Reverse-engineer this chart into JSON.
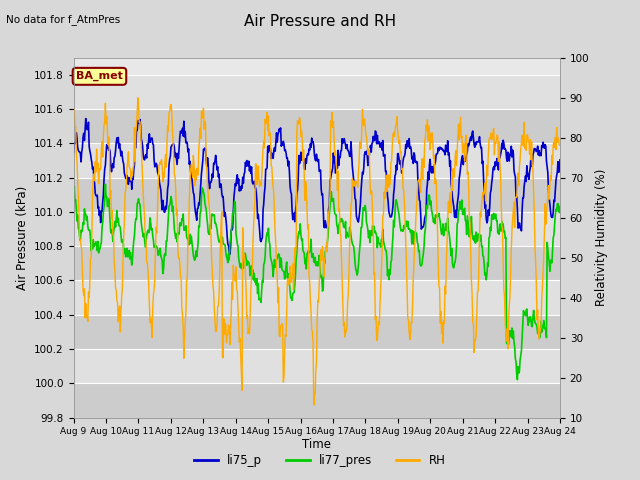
{
  "title": "Air Pressure and RH",
  "top_left_text": "No data for f_AtmPres",
  "ylabel_left": "Air Pressure (kPa)",
  "ylabel_right": "Relativity Humidity (%)",
  "xlabel": "Time",
  "ylim_left": [
    99.8,
    101.9
  ],
  "ylim_right": [
    10,
    100
  ],
  "yticks_left": [
    99.8,
    100.0,
    100.2,
    100.4,
    100.6,
    100.8,
    101.0,
    101.2,
    101.4,
    101.6,
    101.8
  ],
  "yticks_right": [
    10,
    20,
    30,
    40,
    50,
    60,
    70,
    80,
    90,
    100
  ],
  "xtick_labels": [
    "Aug 9",
    "Aug 10",
    "Aug 11",
    "Aug 12",
    "Aug 13",
    "Aug 14",
    "Aug 15",
    "Aug 16",
    "Aug 17",
    "Aug 18",
    "Aug 19",
    "Aug 20",
    "Aug 21",
    "Aug 22",
    "Aug 23",
    "Aug 24"
  ],
  "color_li75_p": "#0000cc",
  "color_li77_pres": "#00cc00",
  "color_RH": "#ffaa00",
  "bg_color": "#d8d8d8",
  "plot_bg_color": "#e8e8e8",
  "band_dark": "#cccccc",
  "band_light": "#e0e0e0",
  "annotation_box_text": "BA_met",
  "annotation_box_facecolor": "#ffff99",
  "annotation_box_edgecolor": "#880000",
  "legend_labels": [
    "li75_p",
    "li77_pres",
    "RH"
  ],
  "legend_colors": [
    "#0000cc",
    "#00cc00",
    "#ffaa00"
  ]
}
